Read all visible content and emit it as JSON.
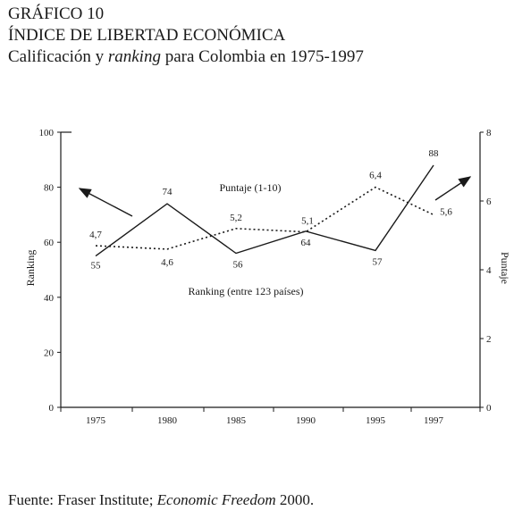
{
  "header": {
    "figure_label": "GRÁFICO 10",
    "title": "ÍNDICE DE LIBERTAD ECONÓMICA",
    "subtitle_prefix": "Calificación y ",
    "subtitle_italic": "ranking",
    "subtitle_suffix": " para Colombia en 1975-1997"
  },
  "chart_data": {
    "type": "line",
    "categories": [
      "1975",
      "1980",
      "1985",
      "1990",
      "1995",
      "1997"
    ],
    "series": [
      {
        "name": "Ranking (entre 123 países)",
        "axis": "left",
        "style": "solid",
        "values": [
          55,
          74,
          56,
          64,
          57,
          88
        ],
        "labels": [
          "55",
          "74",
          "56",
          "64",
          "57",
          "88"
        ]
      },
      {
        "name": "Puntaje (1-10)",
        "axis": "right",
        "style": "dotted",
        "values": [
          4.7,
          4.6,
          5.2,
          5.1,
          6.4,
          5.6
        ],
        "labels": [
          "4,7",
          "4,6",
          "5,2",
          "5,1",
          "6,4",
          "5,6"
        ]
      }
    ],
    "ylabel_left": "Ranking",
    "ylabel_right": "Puntaje",
    "ylim_left": [
      0,
      100
    ],
    "yticks_left": [
      0,
      20,
      40,
      60,
      80,
      100
    ],
    "ylim_right": [
      0,
      8
    ],
    "yticks_right": [
      0,
      2,
      4,
      6,
      8
    ],
    "grid": false
  },
  "source": {
    "prefix": "Fuente: Fraser Institute; ",
    "italic": "Economic Freedom",
    "suffix": " 2000."
  },
  "colors": {
    "ink": "#1a1a1a",
    "background": "#ffffff"
  }
}
